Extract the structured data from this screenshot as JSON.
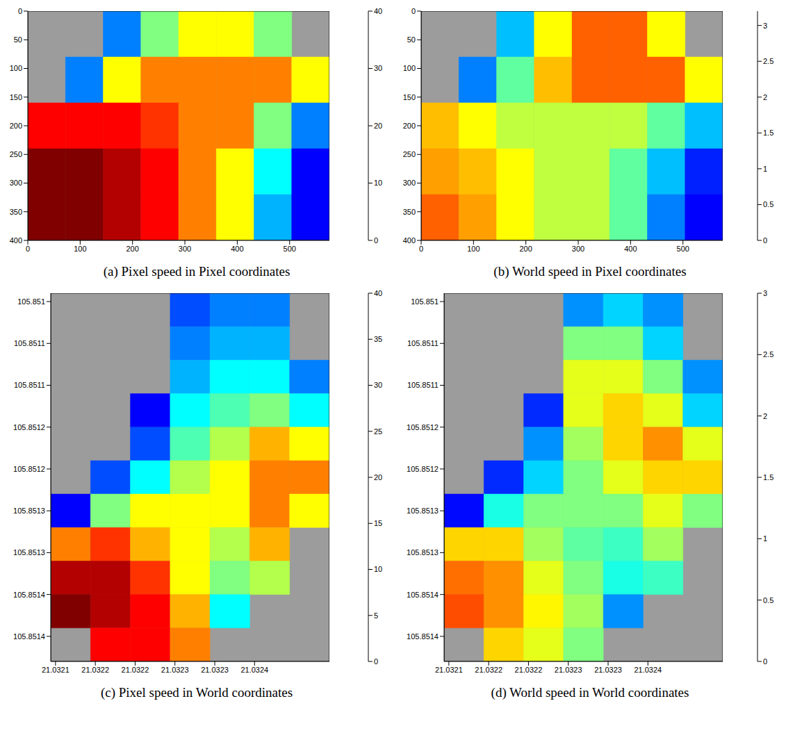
{
  "chart_data": [
    {
      "type": "heatmap",
      "title": "(a) Pixel speed in Pixel coordinates",
      "xlim": [
        0,
        576
      ],
      "xticks": [
        0,
        100,
        200,
        300,
        400,
        500
      ],
      "ylim": [
        0,
        400
      ],
      "yticks": [
        0,
        50,
        100,
        150,
        200,
        250,
        300,
        350,
        400
      ],
      "x_bins": [
        0,
        72,
        144,
        216,
        288,
        360,
        432,
        504,
        576
      ],
      "y_bins": [
        0,
        80,
        160,
        240,
        320,
        400
      ],
      "cells": [
        [
          null,
          null,
          10,
          20,
          25,
          25,
          20,
          null
        ],
        [
          null,
          10,
          25,
          30,
          30,
          30,
          30,
          25
        ],
        [
          35,
          35,
          35,
          33,
          30,
          30,
          20,
          10
        ],
        [
          40,
          40,
          38,
          35,
          30,
          25,
          15,
          5
        ],
        [
          40,
          40,
          38,
          35,
          30,
          25,
          12,
          5
        ]
      ],
      "colorbar_range": [
        0,
        40
      ],
      "colorbar_ticks": [
        0,
        10,
        20,
        30,
        40
      ]
    },
    {
      "type": "heatmap",
      "title": "(b) World speed in Pixel coordinates",
      "xlim": [
        0,
        576
      ],
      "xticks": [
        0,
        100,
        200,
        300,
        400,
        500
      ],
      "ylim": [
        0,
        400
      ],
      "yticks": [
        0,
        50,
        100,
        150,
        200,
        250,
        300,
        350,
        400
      ],
      "x_bins": [
        0,
        72,
        144,
        216,
        288,
        360,
        432,
        504,
        576
      ],
      "y_bins": [
        0,
        80,
        160,
        240,
        320,
        400
      ],
      "cells": [
        [
          null,
          null,
          1,
          2,
          2.5,
          2.5,
          2,
          null
        ],
        [
          null,
          0.8,
          1.5,
          2.2,
          2.5,
          2.5,
          2.5,
          2
        ],
        [
          2.2,
          2,
          1.8,
          1.8,
          1.8,
          1.8,
          1.5,
          1
        ],
        [
          2.3,
          2.2,
          2,
          1.8,
          1.8,
          1.5,
          1,
          0.5
        ],
        [
          2.5,
          2.3,
          2,
          1.8,
          1.8,
          1.5,
          0.8,
          0.4
        ]
      ],
      "colorbar_range": [
        0,
        3.2
      ],
      "colorbar_ticks": [
        0,
        0.5,
        1,
        1.5,
        2,
        2.5,
        3
      ]
    },
    {
      "type": "heatmap",
      "title": "(c) Pixel speed in World coordinates",
      "xlim": [
        21.032094,
        21.032444
      ],
      "xticks": [
        {
          "value": 21.0321,
          "label": "21.0321"
        },
        {
          "value": 21.03215,
          "label": "21.0322"
        },
        {
          "value": 21.0322,
          "label": "21.0322"
        },
        {
          "value": 21.03225,
          "label": "21.0323"
        },
        {
          "value": 21.0323,
          "label": "21.0323"
        },
        {
          "value": 21.03235,
          "label": "21.0324"
        }
      ],
      "ylim": [
        105.85099,
        105.85143
      ],
      "yticks": [
        105.851,
        {
          "value": 105.85105,
          "label": "105.8511"
        },
        {
          "value": 105.8511,
          "label": "105.8511"
        },
        {
          "value": 105.85115,
          "label": "105.8512"
        },
        {
          "value": 105.8512,
          "label": "105.8512"
        },
        {
          "value": 105.85125,
          "label": "105.8513"
        },
        {
          "value": 105.8513,
          "label": "105.8513"
        },
        {
          "value": 105.85135,
          "label": "105.8514"
        },
        {
          "value": 105.8514,
          "label": "105.8514"
        }
      ],
      "x_bins": [
        21.032094,
        21.032144,
        21.032194,
        21.032244,
        21.032294,
        21.032344,
        21.032394,
        21.032444
      ],
      "y_bins": [
        105.85099,
        105.85103,
        105.85107,
        105.85111,
        105.85115,
        105.85119,
        105.85123,
        105.85127,
        105.85131,
        105.85135,
        105.85139,
        105.85143
      ],
      "cells": [
        [
          null,
          null,
          null,
          8,
          10,
          10,
          null
        ],
        [
          null,
          null,
          null,
          10,
          12,
          12,
          null
        ],
        [
          null,
          null,
          null,
          12,
          15,
          15,
          10
        ],
        [
          null,
          null,
          5,
          15,
          18,
          20,
          15
        ],
        [
          null,
          null,
          8,
          18,
          22,
          28,
          25
        ],
        [
          null,
          8,
          15,
          22,
          25,
          30,
          30
        ],
        [
          5,
          20,
          25,
          25,
          25,
          30,
          25
        ],
        [
          30,
          33,
          28,
          25,
          22,
          28,
          null
        ],
        [
          38,
          38,
          33,
          25,
          20,
          22,
          null
        ],
        [
          40,
          38,
          35,
          28,
          15,
          null,
          null
        ],
        [
          null,
          35,
          35,
          30,
          null,
          null,
          null
        ]
      ],
      "colorbar_range": [
        0,
        40
      ],
      "colorbar_ticks": [
        0,
        5,
        10,
        15,
        20,
        25,
        30,
        35,
        40
      ]
    },
    {
      "type": "heatmap",
      "title": "(d) World speed in World coordinates",
      "xlim": [
        21.032094,
        21.032444
      ],
      "xticks": [
        {
          "value": 21.0321,
          "label": "21.0321"
        },
        {
          "value": 21.03215,
          "label": "21.0322"
        },
        {
          "value": 21.0322,
          "label": "21.0322"
        },
        {
          "value": 21.03225,
          "label": "21.0323"
        },
        {
          "value": 21.0323,
          "label": "21.0323"
        },
        {
          "value": 21.03235,
          "label": "21.0324"
        }
      ],
      "ylim": [
        105.85099,
        105.85143
      ],
      "yticks": [
        105.851,
        {
          "value": 105.85105,
          "label": "105.8511"
        },
        {
          "value": 105.8511,
          "label": "105.8511"
        },
        {
          "value": 105.85115,
          "label": "105.8512"
        },
        {
          "value": 105.8512,
          "label": "105.8512"
        },
        {
          "value": 105.85125,
          "label": "105.8513"
        },
        {
          "value": 105.8513,
          "label": "105.8513"
        },
        {
          "value": 105.85135,
          "label": "105.8514"
        },
        {
          "value": 105.8514,
          "label": "105.8514"
        }
      ],
      "x_bins": [
        21.032094,
        21.032144,
        21.032194,
        21.032244,
        21.032294,
        21.032344,
        21.032394,
        21.032444
      ],
      "y_bins": [
        105.85099,
        105.85103,
        105.85107,
        105.85111,
        105.85115,
        105.85119,
        105.85123,
        105.85127,
        105.85131,
        105.85135,
        105.85139,
        105.85143
      ],
      "cells": [
        [
          null,
          null,
          null,
          0.8,
          1.0,
          0.8,
          null
        ],
        [
          null,
          null,
          null,
          1.5,
          1.5,
          1.0,
          null
        ],
        [
          null,
          null,
          null,
          1.8,
          1.8,
          1.5,
          0.8
        ],
        [
          null,
          null,
          0.5,
          1.8,
          2.0,
          1.8,
          1.0
        ],
        [
          null,
          null,
          0.8,
          1.6,
          2.0,
          2.2,
          1.8
        ],
        [
          null,
          0.5,
          1.0,
          1.5,
          1.8,
          2.0,
          2.0
        ],
        [
          0.4,
          1.2,
          1.5,
          1.5,
          1.5,
          1.8,
          1.5
        ],
        [
          2.0,
          2.0,
          1.6,
          1.4,
          1.3,
          1.6,
          null
        ],
        [
          2.3,
          2.2,
          1.8,
          1.5,
          1.2,
          1.3,
          null
        ],
        [
          2.4,
          2.2,
          1.9,
          1.6,
          0.8,
          null,
          null
        ],
        [
          null,
          2.0,
          1.8,
          1.5,
          null,
          null,
          null
        ]
      ],
      "colorbar_range": [
        0,
        3
      ],
      "colorbar_ticks": [
        0,
        0.5,
        1,
        1.5,
        2,
        2.5,
        3
      ]
    }
  ]
}
